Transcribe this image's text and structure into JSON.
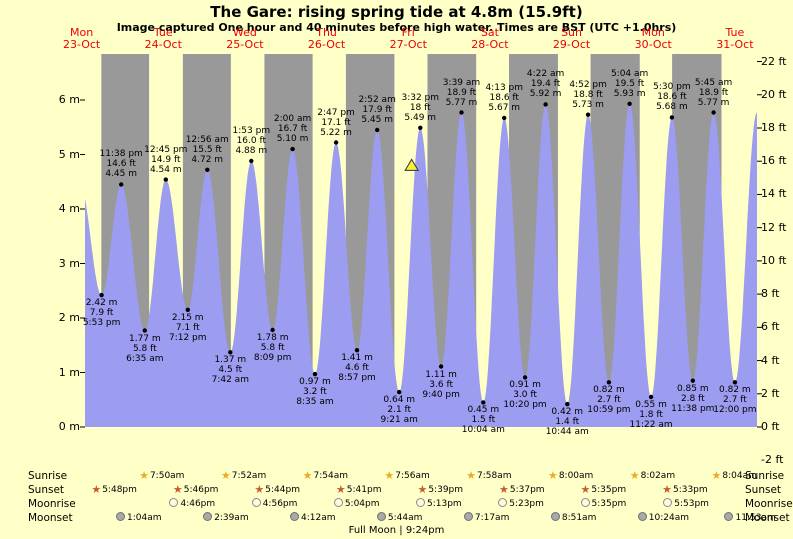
{
  "chart_data": {
    "type": "area",
    "title": "The Gare: rising spring tide at 4.8m (15.9ft)",
    "subtitle": "Image captured One hour and 40 minutes before high water. Times are BST (UTC +1.0hrs)",
    "days": [
      {
        "name": "Mon",
        "date": "23-Oct"
      },
      {
        "name": "Tue",
        "date": "24-Oct"
      },
      {
        "name": "Wed",
        "date": "25-Oct"
      },
      {
        "name": "Thu",
        "date": "26-Oct"
      },
      {
        "name": "Fri",
        "date": "27-Oct"
      },
      {
        "name": "Sat",
        "date": "28-Oct"
      },
      {
        "name": "Sun",
        "date": "29-Oct"
      },
      {
        "name": "Mon",
        "date": "30-Oct"
      },
      {
        "name": "Tue",
        "date": "31-Oct"
      }
    ],
    "y_axis_left": {
      "unit": "m",
      "values": [
        6,
        5,
        4,
        3,
        2,
        1,
        0
      ],
      "labels": [
        "6 m",
        "5 m",
        "4 m",
        "3 m",
        "2 m",
        "1 m",
        "0 m"
      ]
    },
    "y_axis_right": {
      "unit": "ft",
      "values": [
        22,
        20,
        18,
        16,
        14,
        12,
        10,
        8,
        6,
        4,
        2,
        0,
        -2
      ],
      "labels": [
        "22 ft",
        "20 ft",
        "18 ft",
        "16 ft",
        "14 ft",
        "12 ft",
        "10 ft",
        "8 ft",
        "6 ft",
        "4 ft",
        "2 ft",
        "0 ft",
        "-2 ft"
      ]
    },
    "tide_events": [
      {
        "day": 0,
        "time": "5:53 pm",
        "type": "low",
        "height_m": "2.42",
        "height_ft": "7.9"
      },
      {
        "day": 0,
        "time": "11:38 pm",
        "type": "high",
        "height_m": "4.45",
        "height_ft": "14.6"
      },
      {
        "day": 1,
        "time": "6:35 am",
        "type": "low",
        "height_m": "1.77",
        "height_ft": "5.8"
      },
      {
        "day": 1,
        "time": "12:45 pm",
        "type": "high",
        "height_m": "4.54",
        "height_ft": "14.9"
      },
      {
        "day": 1,
        "time": "7:12 pm",
        "type": "low",
        "height_m": "2.15",
        "height_ft": "7.1"
      },
      {
        "day": 2,
        "time": "12:56 am",
        "type": "high",
        "height_m": "4.72",
        "height_ft": "15.5"
      },
      {
        "day": 2,
        "time": "7:42 am",
        "type": "low",
        "height_m": "1.37",
        "height_ft": "4.5"
      },
      {
        "day": 2,
        "time": "1:53 pm",
        "type": "high",
        "height_m": "4.88",
        "height_ft": "16.0"
      },
      {
        "day": 2,
        "time": "8:09 pm",
        "type": "low",
        "height_m": "1.78",
        "height_ft": "5.8"
      },
      {
        "day": 3,
        "time": "2:00 am",
        "type": "high",
        "height_m": "5.10",
        "height_ft": "16.7"
      },
      {
        "day": 3,
        "time": "8:35 am",
        "type": "low",
        "height_m": "0.97",
        "height_ft": "3.2"
      },
      {
        "day": 3,
        "time": "2:47 pm",
        "type": "high",
        "height_m": "5.22",
        "height_ft": "17.1"
      },
      {
        "day": 3,
        "time": "8:57 pm",
        "type": "low",
        "height_m": "1.41",
        "height_ft": "4.6"
      },
      {
        "day": 4,
        "time": "2:52 am",
        "type": "high",
        "height_m": "5.45",
        "height_ft": "17.9"
      },
      {
        "day": 4,
        "time": "9:21 am",
        "type": "low",
        "height_m": "0.64",
        "height_ft": "2.1"
      },
      {
        "day": 4,
        "time": "3:32 pm",
        "type": "high",
        "height_m": "5.49",
        "height_ft": "18"
      },
      {
        "day": 4,
        "time": "9:40 pm",
        "type": "low",
        "height_m": "1.11",
        "height_ft": "3.6"
      },
      {
        "day": 5,
        "time": "3:39 am",
        "type": "high",
        "height_m": "5.77",
        "height_ft": "18.9"
      },
      {
        "day": 5,
        "time": "10:04 am",
        "type": "low",
        "height_m": "0.45",
        "height_ft": "1.5"
      },
      {
        "day": 5,
        "time": "4:13 pm",
        "type": "high",
        "height_m": "5.67",
        "height_ft": "18.6"
      },
      {
        "day": 5,
        "time": "10:20 pm",
        "type": "low",
        "height_m": "0.91",
        "height_ft": "3.0"
      },
      {
        "day": 6,
        "time": "4:22 am",
        "type": "high",
        "height_m": "5.92",
        "height_ft": "19.4"
      },
      {
        "day": 6,
        "time": "10:44 am",
        "type": "low",
        "height_m": "0.42",
        "height_ft": "1.4"
      },
      {
        "day": 6,
        "time": "4:52 pm",
        "type": "high",
        "height_m": "5.73",
        "height_ft": "18.8"
      },
      {
        "day": 6,
        "time": "10:59 pm",
        "type": "low",
        "height_m": "0.82",
        "height_ft": "2.7"
      },
      {
        "day": 7,
        "time": "5:04 am",
        "type": "high",
        "height_m": "5.93",
        "height_ft": "19.5"
      },
      {
        "day": 7,
        "time": "11:22 am",
        "type": "low",
        "height_m": "0.55",
        "height_ft": "1.8"
      },
      {
        "day": 7,
        "time": "5:30 pm",
        "type": "high",
        "height_m": "5.68",
        "height_ft": "18.6"
      },
      {
        "day": 7,
        "time": "11:38 pm",
        "type": "low",
        "height_m": "0.85",
        "height_ft": "2.8"
      },
      {
        "day": 8,
        "time": "5:45 am",
        "type": "high",
        "height_m": "5.77",
        "height_ft": "18.9"
      },
      {
        "day": 8,
        "time": "12:00 pm",
        "type": "low",
        "height_m": "0.82",
        "height_ft": "2.7"
      }
    ],
    "current_level_marker": {
      "day": 4,
      "hour": 13,
      "height_m": 4.8
    }
  },
  "colors": {
    "background": "#ffffc8",
    "night_band": "#999999",
    "tide_fill": "#9c9cf0",
    "day_label": "#ee0000",
    "marker_fill": "#f6ef3a",
    "dot": "#000000"
  },
  "astro": {
    "rows": [
      {
        "key": "sunrise",
        "label": "Sunrise",
        "icon": "sunrise-star-icon",
        "icon_shape": "star",
        "icon_color": "#edaa28",
        "entries": [
          {
            "day": 1,
            "time": "7:50am"
          },
          {
            "day": 2,
            "time": "7:52am"
          },
          {
            "day": 3,
            "time": "7:54am"
          },
          {
            "day": 4,
            "time": "7:56am"
          },
          {
            "day": 5,
            "time": "7:58am"
          },
          {
            "day": 6,
            "time": "8:00am"
          },
          {
            "day": 7,
            "time": "8:02am"
          },
          {
            "day": 8,
            "time": "8:04am"
          }
        ]
      },
      {
        "key": "sunset",
        "label": "Sunset",
        "icon": "sunset-star-icon",
        "icon_shape": "star",
        "icon_color": "#c95b2a",
        "entries": [
          {
            "day": 0,
            "time": "5:48pm"
          },
          {
            "day": 1,
            "time": "5:46pm"
          },
          {
            "day": 2,
            "time": "5:44pm"
          },
          {
            "day": 3,
            "time": "5:41pm"
          },
          {
            "day": 4,
            "time": "5:39pm"
          },
          {
            "day": 5,
            "time": "5:37pm"
          },
          {
            "day": 6,
            "time": "5:35pm"
          },
          {
            "day": 7,
            "time": "5:33pm"
          }
        ]
      },
      {
        "key": "moonrise",
        "label": "Moonrise",
        "icon": "moonrise-moon-icon",
        "icon_shape": "circle",
        "icon_fill": "#fffcdd",
        "icon_border": "#8a8a8a",
        "entries": [
          {
            "day": 1,
            "time": "4:46pm"
          },
          {
            "day": 2,
            "time": "4:56pm"
          },
          {
            "day": 3,
            "time": "5:04pm"
          },
          {
            "day": 4,
            "time": "5:13pm"
          },
          {
            "day": 5,
            "time": "5:23pm"
          },
          {
            "day": 6,
            "time": "5:35pm"
          },
          {
            "day": 7,
            "time": "5:53pm"
          }
        ]
      },
      {
        "key": "moonset",
        "label": "Moonset",
        "icon": "moonset-moon-icon",
        "icon_shape": "circle",
        "icon_fill": "#a9a9a9",
        "icon_border": "#6f6f6f",
        "entries": [
          {
            "day": 1,
            "time": "1:04am"
          },
          {
            "day": 2,
            "time": "2:39am"
          },
          {
            "day": 3,
            "time": "4:12am"
          },
          {
            "day": 4,
            "time": "5:44am"
          },
          {
            "day": 5,
            "time": "7:17am"
          },
          {
            "day": 6,
            "time": "8:51am"
          },
          {
            "day": 7,
            "time": "10:24am"
          },
          {
            "day": 8,
            "time": "11:53am"
          }
        ]
      }
    ],
    "footer": "Full Moon | 9:24pm"
  }
}
